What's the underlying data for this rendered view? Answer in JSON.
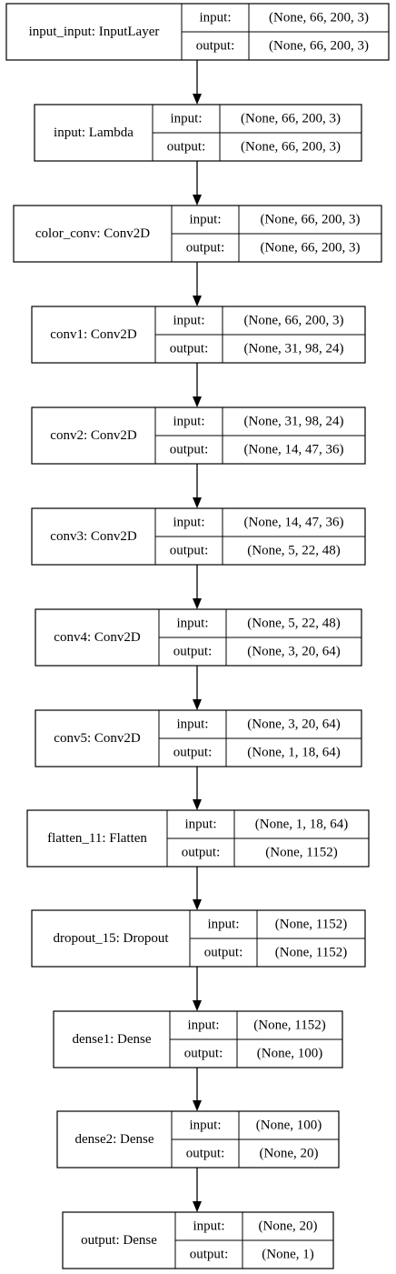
{
  "diagram": {
    "port_labels": {
      "input": "input:",
      "output": "output:"
    },
    "layers": [
      {
        "name": "input_input: InputLayer",
        "input": "(None, 66, 200, 3)",
        "output": "(None, 66, 200, 3)"
      },
      {
        "name": "input: Lambda",
        "input": "(None, 66, 200, 3)",
        "output": "(None, 66, 200, 3)"
      },
      {
        "name": "color_conv: Conv2D",
        "input": "(None, 66, 200, 3)",
        "output": "(None, 66, 200, 3)"
      },
      {
        "name": "conv1: Conv2D",
        "input": "(None, 66, 200, 3)",
        "output": "(None, 31, 98, 24)"
      },
      {
        "name": "conv2: Conv2D",
        "input": "(None, 31, 98, 24)",
        "output": "(None, 14, 47, 36)"
      },
      {
        "name": "conv3: Conv2D",
        "input": "(None, 14, 47, 36)",
        "output": "(None, 5, 22, 48)"
      },
      {
        "name": "conv4: Conv2D",
        "input": "(None, 5, 22, 48)",
        "output": "(None, 3, 20, 64)"
      },
      {
        "name": "conv5: Conv2D",
        "input": "(None, 3, 20, 64)",
        "output": "(None, 1, 18, 64)"
      },
      {
        "name": "flatten_11: Flatten",
        "input": "(None, 1, 18, 64)",
        "output": "(None, 1152)"
      },
      {
        "name": "dropout_15: Dropout",
        "input": "(None, 1152)",
        "output": "(None, 1152)"
      },
      {
        "name": "dense1: Dense",
        "input": "(None, 1152)",
        "output": "(None, 100)"
      },
      {
        "name": "dense2: Dense",
        "input": "(None, 100)",
        "output": "(None, 20)"
      },
      {
        "name": "output: Dense",
        "input": "(None, 20)",
        "output": "(None, 1)"
      }
    ]
  }
}
